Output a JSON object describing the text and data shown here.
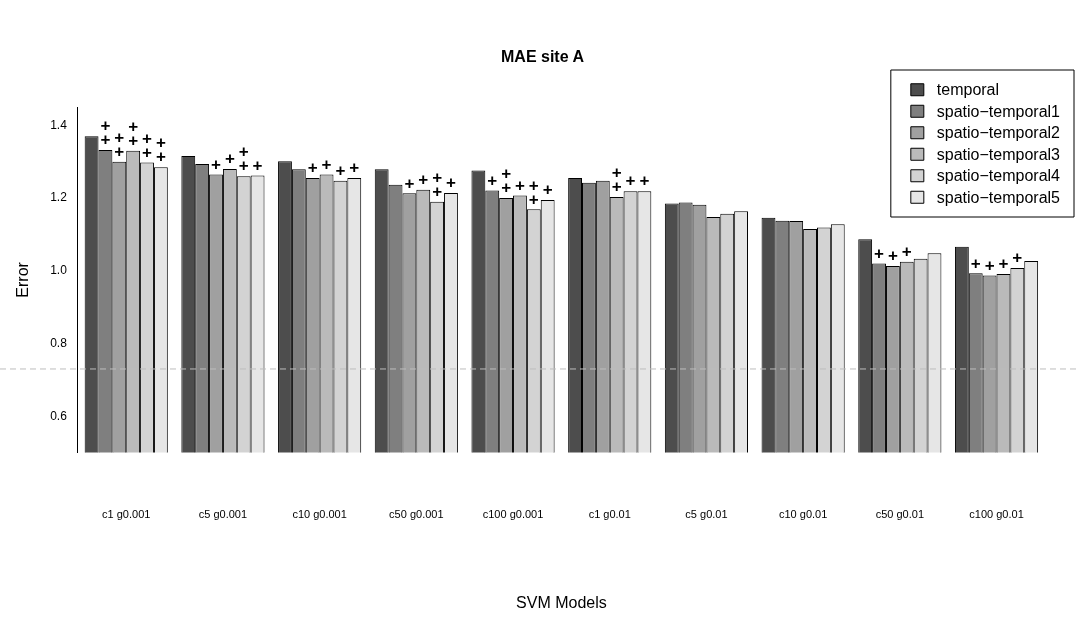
{
  "chart_data": {
    "type": "bar",
    "title": "MAE site A",
    "xlabel": "SVM Models",
    "ylabel": "Error",
    "categories": [
      "c1 g0.001",
      "c5 g0.001",
      "c10 g0.001",
      "c50 g0.001",
      "c100 g0.001",
      "c1 g0.01",
      "c5 g0.01",
      "c10 g0.01",
      "c50 g0.01",
      "c100 g0.01"
    ],
    "series": [
      {
        "name": "temporal",
        "color": "#4d4d4d",
        "values": [
          1.37,
          1.316,
          1.301,
          1.279,
          1.276,
          1.255,
          1.185,
          1.146,
          1.087,
          1.066
        ],
        "value_labels": [
          null,
          null,
          null,
          null,
          null,
          null,
          null,
          null,
          null,
          null
        ]
      },
      {
        "name": "spatio−temporal1",
        "color": "#7f7f7f",
        "values": [
          1.332,
          1.294,
          1.279,
          1.237,
          1.221,
          1.242,
          1.188,
          1.138,
          1.02,
          0.993
        ],
        "value_labels": [
          "+\n+",
          null,
          null,
          null,
          "+",
          null,
          null,
          null,
          "+",
          "+"
        ]
      },
      {
        "name": "spatio−temporal2",
        "color": "#a0a0a0",
        "values": [
          1.3,
          1.265,
          1.255,
          1.213,
          1.2,
          1.248,
          1.182,
          1.137,
          1.013,
          0.987
        ],
        "value_labels": [
          "+\n+",
          "+",
          "+",
          "+",
          "+\n+",
          null,
          null,
          null,
          "+",
          "+"
        ]
      },
      {
        "name": "spatio−temporal3",
        "color": "#bababa",
        "values": [
          1.33,
          1.28,
          1.265,
          1.223,
          1.207,
          1.203,
          1.148,
          1.115,
          1.025,
          0.991
        ],
        "value_labels": [
          "+\n+",
          "+",
          "+",
          "+",
          "+",
          "+\n+",
          null,
          null,
          "+",
          "+"
        ]
      },
      {
        "name": "spatio−temporal4",
        "color": "#d3d3d3",
        "values": [
          1.298,
          1.26,
          1.248,
          1.19,
          1.169,
          1.219,
          1.157,
          1.119,
          1.033,
          1.008
        ],
        "value_labels": [
          "+\n+",
          "+\n+",
          "+",
          "+\n+",
          "+\n+",
          "+",
          null,
          null,
          null,
          "+"
        ]
      },
      {
        "name": "spatio−temporal5",
        "color": "#e6e6e6",
        "values": [
          1.285,
          1.262,
          1.255,
          1.214,
          1.195,
          1.219,
          1.164,
          1.128,
          1.048,
          1.027
        ],
        "value_labels": [
          "+\n+",
          "+",
          "+",
          "+",
          "+",
          "+",
          null,
          null,
          null,
          null
        ]
      }
    ],
    "ylim": [
      0.5,
      1.45
    ],
    "yticks": [
      0.6,
      0.8,
      {
        "value": 1,
        "label": "1.0"
      },
      1.2,
      1.4
    ],
    "ref_lines": [
      {
        "axis": "y",
        "value": 0.73,
        "color": "#bebebe",
        "line_style": "dashed"
      }
    ],
    "grid": false,
    "legend": "top right"
  }
}
